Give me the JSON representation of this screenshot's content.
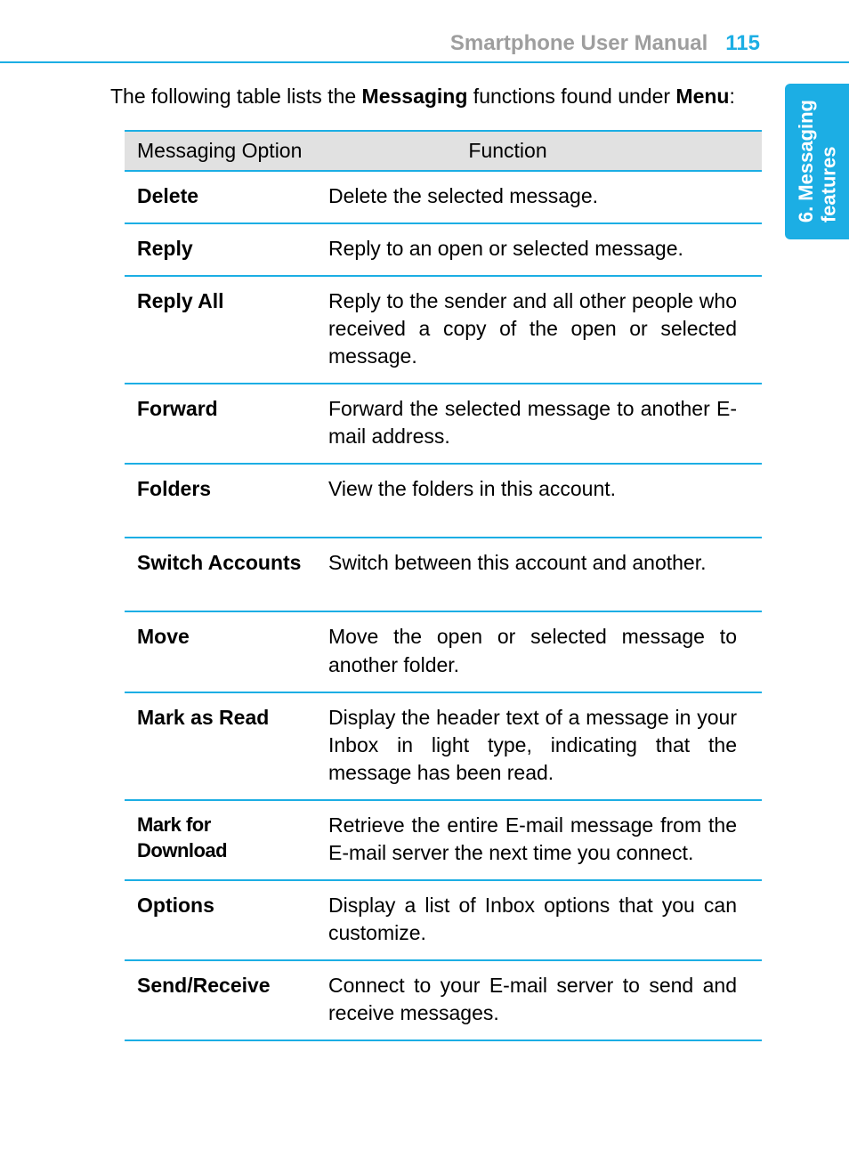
{
  "header": {
    "title": "Smartphone User Manual",
    "page_number": "115",
    "title_color": "#9e9e9e",
    "page_color": "#1caee4",
    "rule_color": "#1caee4"
  },
  "side_tab": {
    "line1": "6. Messaging",
    "line2": "features",
    "bg_color": "#1caee4",
    "text_color": "#ffffff"
  },
  "intro": {
    "pre": "The following table lists the ",
    "bold1": "Messaging",
    "mid": " functions found under ",
    "bold2": "Menu",
    "post": ":"
  },
  "table": {
    "columns": [
      "Messaging Option",
      "Function"
    ],
    "header_bg": "#e1e1e1",
    "border_color": "#1caee4",
    "rows": [
      {
        "option": "Delete",
        "function": "Delete the selected message.",
        "tall": false
      },
      {
        "option": "Reply",
        "function": "Reply to an open or selected mes­sage.",
        "tall": false
      },
      {
        "option": "Reply All",
        "function": "Reply to the sender and all other people who received a copy of the open or selected message.",
        "tall": false
      },
      {
        "option": "Forward",
        "function": "Forward the selected message to another E-mail address.",
        "tall": false
      },
      {
        "option": "Folders",
        "function": "View the folders in this account.",
        "tall": true
      },
      {
        "option": "Switch Accounts",
        "function": "Switch between this account and another.",
        "tall": true
      },
      {
        "option": "Move",
        "function": "Move the open or selected message to another folder.",
        "tall": false
      },
      {
        "option": "Mark as Read",
        "function": "Display the header text of a message in your Inbox in light type, indicating that the message has been read.",
        "tall": false
      },
      {
        "option": "Mark for Download",
        "function": "Retrieve the entire E-mail message from the E-mail server the next time you con­nect.",
        "tall": false,
        "condensed": true
      },
      {
        "option": "Options",
        "function": "Display a list of Inbox options that you can customize.",
        "tall": false
      },
      {
        "option": "Send/Receive",
        "function": "Connect to your E-mail server to send and receive messages.",
        "tall": false
      }
    ]
  }
}
